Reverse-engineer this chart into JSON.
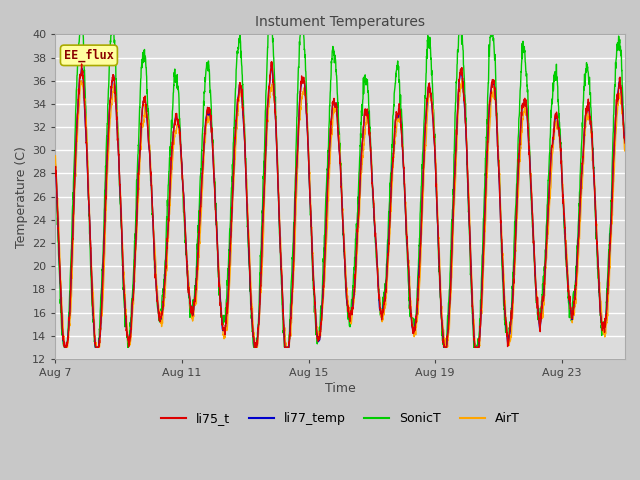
{
  "title": "Instument Temperatures",
  "xlabel": "Time",
  "ylabel": "Temperature (C)",
  "ylim": [
    12,
    40
  ],
  "yticks": [
    12,
    14,
    16,
    18,
    20,
    22,
    24,
    26,
    28,
    30,
    32,
    34,
    36,
    38,
    40
  ],
  "xtick_labels": [
    "Aug 7",
    "Aug 11",
    "Aug 15",
    "Aug 19",
    "Aug 23"
  ],
  "xtick_positions": [
    0,
    4,
    8,
    12,
    16
  ],
  "xlim": [
    0,
    18
  ],
  "annotation_text": "EE_flux",
  "annotation_color": "#8B0000",
  "annotation_bg": "#FFFFA0",
  "annotation_border": "#AAAA00",
  "colors": {
    "li75_t": "#DD0000",
    "li77_temp": "#0000CC",
    "SonicT": "#00CC00",
    "AirT": "#FFA500"
  },
  "line_width": 1.0,
  "plot_bg": "#DCDCDC",
  "fig_bg": "#C8C8C8",
  "grid_color": "#FFFFFF",
  "figsize": [
    6.4,
    4.8
  ],
  "dpi": 100
}
